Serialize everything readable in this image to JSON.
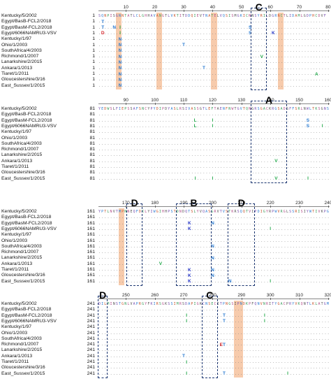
{
  "strains": [
    "Kentucky/5/2002",
    "Egypt/BasB-FCL2/2018",
    "Egypt/BasM-FCL2/2018",
    "Egypt/6066NAMRU3-VSV",
    "Kentucky/1/97",
    "Ohio/1/2003",
    "SouthAfrica/4/2003",
    "Richmond/1/2007",
    "Lanarkshire/2/2015",
    "Ankara/1/2013",
    "Tiaret/1/2011",
    "Gloucestershire/3/16",
    "East_Sussex/1/2015"
  ],
  "blocks": [
    {
      "start": 1,
      "row_numbers": [
        "1",
        "1",
        "1",
        "1",
        "1",
        "1",
        "1",
        "1",
        "1",
        "1",
        "1",
        "1",
        "1"
      ],
      "ticks": [
        "10",
        "20",
        "30",
        "40",
        "50",
        "60",
        "70",
        "80"
      ],
      "reference_sequence": "SQNPISGNNTATLCLGHHAVANGTLVKTITDDQIEVTNATELVQSISMGKICNNSYRILDGRNCTLIDAMLGDPHCDVF",
      "variants": [
        {
          "row": 1,
          "col": 2,
          "text": "T"
        },
        {
          "row": 2,
          "col": 2,
          "text": "T"
        },
        {
          "row": 2,
          "col": 6,
          "text": "N"
        },
        {
          "row": 2,
          "col": 8,
          "text": "I"
        },
        {
          "row": 3,
          "col": 2,
          "text": "D"
        },
        {
          "row": 3,
          "col": 8,
          "text": "I"
        },
        {
          "row": 4,
          "col": 8,
          "text": "N"
        },
        {
          "row": 5,
          "col": 8,
          "text": "N"
        },
        {
          "row": 5,
          "col": 30,
          "text": "T"
        },
        {
          "row": 6,
          "col": 8,
          "text": "N"
        },
        {
          "row": 7,
          "col": 8,
          "text": "N"
        },
        {
          "row": 7,
          "col": 57,
          "text": "V"
        },
        {
          "row": 8,
          "col": 8,
          "text": "N"
        },
        {
          "row": 9,
          "col": 8,
          "text": "N"
        },
        {
          "row": 9,
          "col": 37,
          "text": "T"
        },
        {
          "row": 10,
          "col": 8,
          "text": "N"
        },
        {
          "row": 10,
          "col": 76,
          "text": "A"
        },
        {
          "row": 11,
          "col": 8,
          "text": "N"
        },
        {
          "row": 2,
          "col": 53,
          "text": "S"
        },
        {
          "row": 3,
          "col": 53,
          "text": "S"
        },
        {
          "row": 3,
          "col": 61,
          "text": "K"
        },
        {
          "row": 12,
          "col": 8,
          "text": "N"
        }
      ],
      "highlights": [
        {
          "from": 7,
          "to": 8
        },
        {
          "from": 21,
          "to": 22
        },
        {
          "from": 40,
          "to": 41
        },
        {
          "from": 63,
          "to": 64
        }
      ],
      "regions": [
        {
          "name": "C",
          "from": 54,
          "to": 58
        }
      ]
    },
    {
      "start": 81,
      "row_numbers": [
        "81",
        "81",
        "81",
        "81",
        "81",
        "81",
        "81",
        "81",
        "81",
        "81",
        "81",
        "81",
        "81"
      ],
      "ticks": [
        "90",
        "100",
        "110",
        "120",
        "130",
        "140",
        "150",
        "160"
      ],
      "reference_sequence": "YEDWSLFIEPSSAFSNCYPYDIPDYASLRSIVASSGTLEFTAENFNWTGVTQNGRSGACKRGSADSFFSRLNWLTKSGNSY",
      "variants": [
        {
          "row": 2,
          "col": 34,
          "text": "L"
        },
        {
          "row": 2,
          "col": 40,
          "text": "I"
        },
        {
          "row": 2,
          "col": 73,
          "text": "S"
        },
        {
          "row": 3,
          "col": 34,
          "text": "L"
        },
        {
          "row": 3,
          "col": 40,
          "text": "I"
        },
        {
          "row": 3,
          "col": 73,
          "text": "S"
        },
        {
          "row": 3,
          "col": 78,
          "text": "I"
        },
        {
          "row": 9,
          "col": 62,
          "text": "V"
        },
        {
          "row": 12,
          "col": 34,
          "text": "I"
        },
        {
          "row": 12,
          "col": 40,
          "text": "I"
        },
        {
          "row": 12,
          "col": 62,
          "text": "V"
        },
        {
          "row": 12,
          "col": 73,
          "text": "I"
        }
      ],
      "highlights": [],
      "regions": [
        {
          "name": "A",
          "from": 54,
          "to": 65
        }
      ]
    },
    {
      "start": 161,
      "row_numbers": [
        "161",
        "161",
        "161",
        "161",
        "161",
        "161",
        "161",
        "161",
        "161",
        "161",
        "161",
        "161",
        "161"
      ],
      "ticks": [
        "170",
        "180",
        "190",
        "200",
        "210",
        "220",
        "230",
        "240"
      ],
      "reference_sequence": "YPTLNVTMPNNEQFDKLYIWGIHHPSTDNDQTSLYVQASGRVTVSTKRSQQTVIPDIGYRPWVRGLSSRISIYWTIVKPG",
      "variants": [
        {
          "row": 2,
          "col": 32,
          "text": "K"
        },
        {
          "row": 2,
          "col": 40,
          "text": "N"
        },
        {
          "row": 3,
          "col": 32,
          "text": "K"
        },
        {
          "row": 3,
          "col": 60,
          "text": "I"
        },
        {
          "row": 6,
          "col": 40,
          "text": "N"
        },
        {
          "row": 8,
          "col": 40,
          "text": "N"
        },
        {
          "row": 9,
          "col": 22,
          "text": "V"
        },
        {
          "row": 10,
          "col": 32,
          "text": "K"
        },
        {
          "row": 10,
          "col": 40,
          "text": "N"
        },
        {
          "row": 11,
          "col": 32,
          "text": "K"
        },
        {
          "row": 11,
          "col": 40,
          "text": "N"
        },
        {
          "row": 12,
          "col": 60,
          "text": "I"
        },
        {
          "row": 12,
          "col": 32,
          "text": "K"
        },
        {
          "row": 12,
          "col": 46,
          "text": "N"
        }
      ],
      "highlights": [
        {
          "from": 8,
          "to": 9
        }
      ],
      "regions": [
        {
          "name": "D",
          "from": 11,
          "to": 15
        },
        {
          "name": "B",
          "from": 28,
          "to": 39
        },
        {
          "name": "D",
          "from": 46,
          "to": 54
        }
      ]
    },
    {
      "start": 241,
      "row_numbers": [
        "241",
        "241",
        "241",
        "241",
        "241",
        "241",
        "241",
        "241",
        "241",
        "241",
        "241",
        "241",
        "241"
      ],
      "ticks": [
        "250",
        "260",
        "270",
        "280",
        "290",
        "300",
        "310",
        "320"
      ],
      "reference_sequence": "DILMINSTGNLVAPRGYFKIRSGKSSIMRSDAPIGKCNSECITPNGSIPNDKPFQNVNRITYGACPRYVKQNTLKLATGM",
      "variants": [
        {
          "row": 2,
          "col": 31,
          "text": "I"
        },
        {
          "row": 2,
          "col": 44,
          "text": "T"
        },
        {
          "row": 2,
          "col": 58,
          "text": "I"
        },
        {
          "row": 3,
          "col": 31,
          "text": "I"
        },
        {
          "row": 3,
          "col": 44,
          "text": "T"
        },
        {
          "row": 3,
          "col": 58,
          "text": "I"
        },
        {
          "row": 7,
          "col": 43,
          "text": "E"
        },
        {
          "row": 7,
          "col": 44,
          "text": "T"
        },
        {
          "row": 9,
          "col": 30,
          "text": "T"
        },
        {
          "row": 10,
          "col": 31,
          "text": "I"
        },
        {
          "row": 12,
          "col": 31,
          "text": "I"
        },
        {
          "row": 12,
          "col": 44,
          "text": "T"
        },
        {
          "row": 12,
          "col": 66,
          "text": "I"
        }
      ],
      "highlights": [
        {
          "from": 48,
          "to": 50
        }
      ],
      "regions": [
        {
          "name": "D",
          "from": 1,
          "to": 3
        },
        {
          "name": "C",
          "from": 37,
          "to": 41
        }
      ]
    }
  ]
}
